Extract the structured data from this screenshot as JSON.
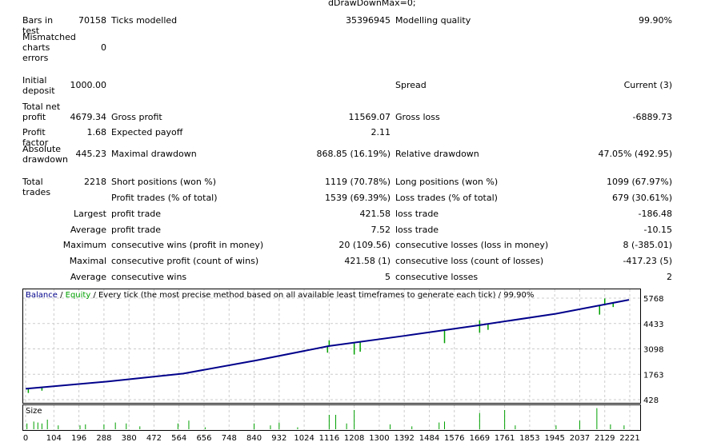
{
  "top_cut_text": "dDrawDownMax=0;",
  "rows": [
    {
      "l1": "Bars in test",
      "v1": "70158",
      "l2": "Ticks modelled",
      "v2": "35396945",
      "l3": "Modelling quality",
      "v3": "99.90%"
    },
    {
      "l1": "Mismatched charts errors",
      "v1": "0"
    },
    {
      "l1": "Initial deposit",
      "v1": "1000.00",
      "l3": "Spread",
      "v3": "Current (3)"
    },
    {
      "l1": "Total net profit",
      "v1": "4679.34",
      "l2": "Gross profit",
      "v2": "11569.07",
      "l3": "Gross loss",
      "v3": "-6889.73"
    },
    {
      "l1": "Profit factor",
      "v1": "1.68",
      "l2": "Expected payoff",
      "v2": "2.11"
    },
    {
      "l1": "Absolute drawdown",
      "v1": "445.23",
      "l2": "Maximal drawdown",
      "v2": "868.85 (16.19%)",
      "l3": "Relative drawdown",
      "v3": "47.05% (492.95)"
    },
    {
      "l1": "Total trades",
      "v1": "2218",
      "l2": "Short positions (won %)",
      "v2": "1119 (70.78%)",
      "l3": "Long positions (won %)",
      "v3": "1099 (67.97%)"
    },
    {
      "l2": "Profit trades (% of total)",
      "v2": "1539 (69.39%)",
      "l3": "Loss trades (% of total)",
      "v3": "679 (30.61%)"
    },
    {
      "v1": "Largest",
      "l2": "profit trade",
      "v2": "421.58",
      "l3": "loss trade",
      "v3": "-186.48"
    },
    {
      "v1": "Average",
      "l2": "profit trade",
      "v2": "7.52",
      "l3": "loss trade",
      "v3": "-10.15"
    },
    {
      "v1": "Maximum",
      "l2": "consecutive wins (profit in money)",
      "v2": "20 (109.56)",
      "l3": "consecutive losses (loss in money)",
      "v3": "8 (-385.01)"
    },
    {
      "v1": "Maximal",
      "l2": "consecutive profit (count of wins)",
      "v2": "421.58 (1)",
      "l3": "consecutive loss (count of losses)",
      "v3": "-417.23 (5)"
    },
    {
      "v1": "Average",
      "l2": "consecutive wins",
      "v2": "5",
      "l3": "consecutive losses",
      "v3": "2"
    }
  ],
  "chart_data": {
    "type": "line",
    "legend": {
      "balance": "Balance",
      "equity": "Equity",
      "rest": "/ Every tick (the most precise method based on all available least timeframes to generate each tick) / 99.90%"
    },
    "colors": {
      "balance": "#00008b",
      "equity": "#00a000",
      "size": "#00a000"
    },
    "y_ticks": [
      5768,
      4433,
      3098,
      1763,
      428
    ],
    "ylim": [
      428,
      5768
    ],
    "x_ticks": [
      0,
      104,
      196,
      288,
      380,
      472,
      564,
      656,
      748,
      840,
      932,
      1024,
      1116,
      1208,
      1300,
      1392,
      1484,
      1576,
      1669,
      1761,
      1853,
      1945,
      2037,
      2129,
      2221
    ],
    "xlim": [
      0,
      2240
    ],
    "balance": [
      [
        0,
        1000
      ],
      [
        300,
        1380
      ],
      [
        580,
        1800
      ],
      [
        850,
        2500
      ],
      [
        1116,
        3250
      ],
      [
        1400,
        3800
      ],
      [
        1670,
        4350
      ],
      [
        1950,
        4950
      ],
      [
        2218,
        5679
      ]
    ],
    "equity_dips": [
      [
        10,
        780
      ],
      [
        60,
        900
      ],
      [
        840,
        2450
      ],
      [
        1110,
        2900
      ],
      [
        1116,
        3550
      ],
      [
        1208,
        2800
      ],
      [
        1230,
        2950
      ],
      [
        1540,
        3400
      ],
      [
        1669,
        4600
      ],
      [
        1669,
        3950
      ],
      [
        1700,
        4100
      ],
      [
        2110,
        4900
      ],
      [
        2129,
        5750
      ],
      [
        2160,
        5300
      ]
    ],
    "size_label": "Size",
    "size": [
      [
        5,
        0.3
      ],
      [
        30,
        0.4
      ],
      [
        45,
        0.35
      ],
      [
        60,
        0.3
      ],
      [
        80,
        0.5
      ],
      [
        120,
        0.2
      ],
      [
        200,
        0.2
      ],
      [
        220,
        0.25
      ],
      [
        288,
        0.25
      ],
      [
        330,
        0.35
      ],
      [
        370,
        0.3
      ],
      [
        420,
        0.15
      ],
      [
        560,
        0.3
      ],
      [
        600,
        0.45
      ],
      [
        660,
        0.1
      ],
      [
        840,
        0.3
      ],
      [
        900,
        0.2
      ],
      [
        932,
        0.35
      ],
      [
        1000,
        0.1
      ],
      [
        1116,
        0.75
      ],
      [
        1140,
        0.75
      ],
      [
        1180,
        0.3
      ],
      [
        1208,
        1.0
      ],
      [
        1340,
        0.25
      ],
      [
        1420,
        0.15
      ],
      [
        1520,
        0.35
      ],
      [
        1540,
        0.4
      ],
      [
        1669,
        0.85
      ],
      [
        1761,
        1.0
      ],
      [
        1800,
        0.2
      ],
      [
        1950,
        0.2
      ],
      [
        2037,
        0.45
      ],
      [
        2100,
        1.2
      ],
      [
        2150,
        0.25
      ],
      [
        2200,
        0.2
      ]
    ]
  }
}
